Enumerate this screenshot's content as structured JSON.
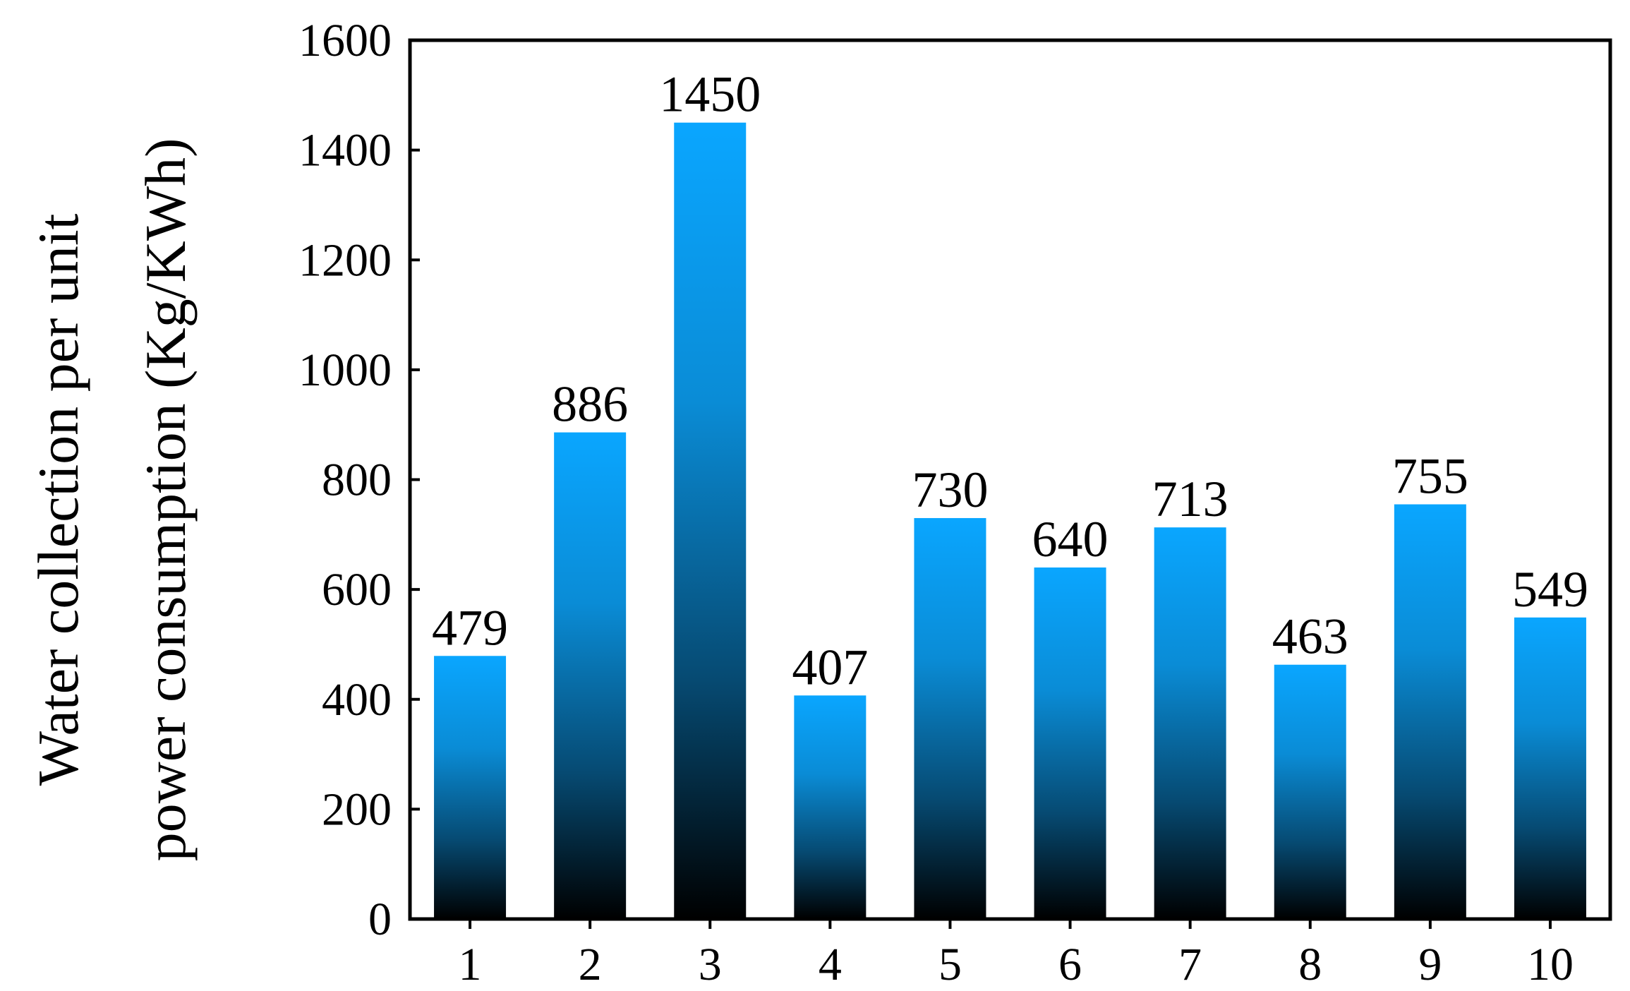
{
  "chart_data": {
    "type": "bar",
    "categories": [
      "1",
      "2",
      "3",
      "4",
      "5",
      "6",
      "7",
      "8",
      "9",
      "10"
    ],
    "values": [
      479,
      886,
      1450,
      407,
      730,
      640,
      713,
      463,
      755,
      549
    ],
    "data_labels": [
      "479",
      "886",
      "1450",
      "407",
      "730",
      "640",
      "713",
      "463",
      "755",
      "549"
    ],
    "title": "",
    "xlabel": "",
    "ylabel_lines": [
      "Water collection per unit",
      "power consumption (Kg/KWh)"
    ],
    "ylim": [
      0,
      1600
    ],
    "yticks": [
      0,
      200,
      400,
      600,
      800,
      1000,
      1200,
      1400,
      1600
    ],
    "ytick_labels": [
      "0",
      "200",
      "400",
      "600",
      "800",
      "1000",
      "1200",
      "1400",
      "1600"
    ],
    "grid": false,
    "legend": "none",
    "bar_gradient": {
      "top": "#0aa6ff",
      "bottom": "#000000"
    },
    "axis_color": "#000000"
  }
}
